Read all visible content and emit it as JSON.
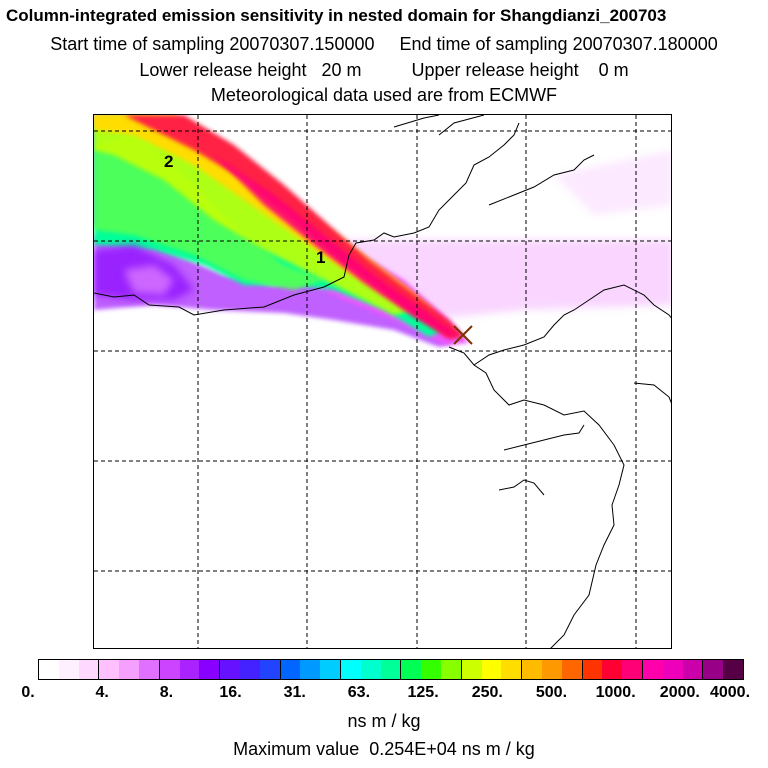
{
  "header": {
    "title": "Column-integrated emission sensitivity in nested domain for Shangdianzi_200703",
    "sampling": "Start time of sampling 20070307.150000     End time of sampling 20070307.180000",
    "release": "Lower release height   20 m          Upper release height    0 m",
    "met": "Meteorological data used are from ECMWF"
  },
  "map": {
    "labels": [
      "2",
      "1"
    ],
    "receptor_marker": "x-marker-icon"
  },
  "colorbar": {
    "colors": [
      "#ffffff",
      "#fff0ff",
      "#ffd8ff",
      "#ffc0ff",
      "#f5a0ff",
      "#e070ff",
      "#cc44ff",
      "#aa22ff",
      "#8800ff",
      "#6611ff",
      "#4422ff",
      "#2244ff",
      "#0066ff",
      "#0099ff",
      "#00ccff",
      "#00ffff",
      "#00ffcc",
      "#00ff99",
      "#00ff55",
      "#33ff00",
      "#88ff00",
      "#ccff00",
      "#ffff00",
      "#ffdd00",
      "#ffbb00",
      "#ff9900",
      "#ff6600",
      "#ff3300",
      "#ff0033",
      "#ff0077",
      "#ff00aa",
      "#ee00bb",
      "#cc00aa",
      "#990088",
      "#550044"
    ],
    "tick_labels": [
      "0.",
      "4.",
      "8.",
      "16.",
      "31.",
      "63.",
      "125.",
      "250.",
      "500.",
      "1000.",
      "2000.",
      "4000."
    ],
    "units": "ns m / kg"
  },
  "footer": {
    "max_value": "Maximum value  0.254E+04 ns m / kg"
  }
}
